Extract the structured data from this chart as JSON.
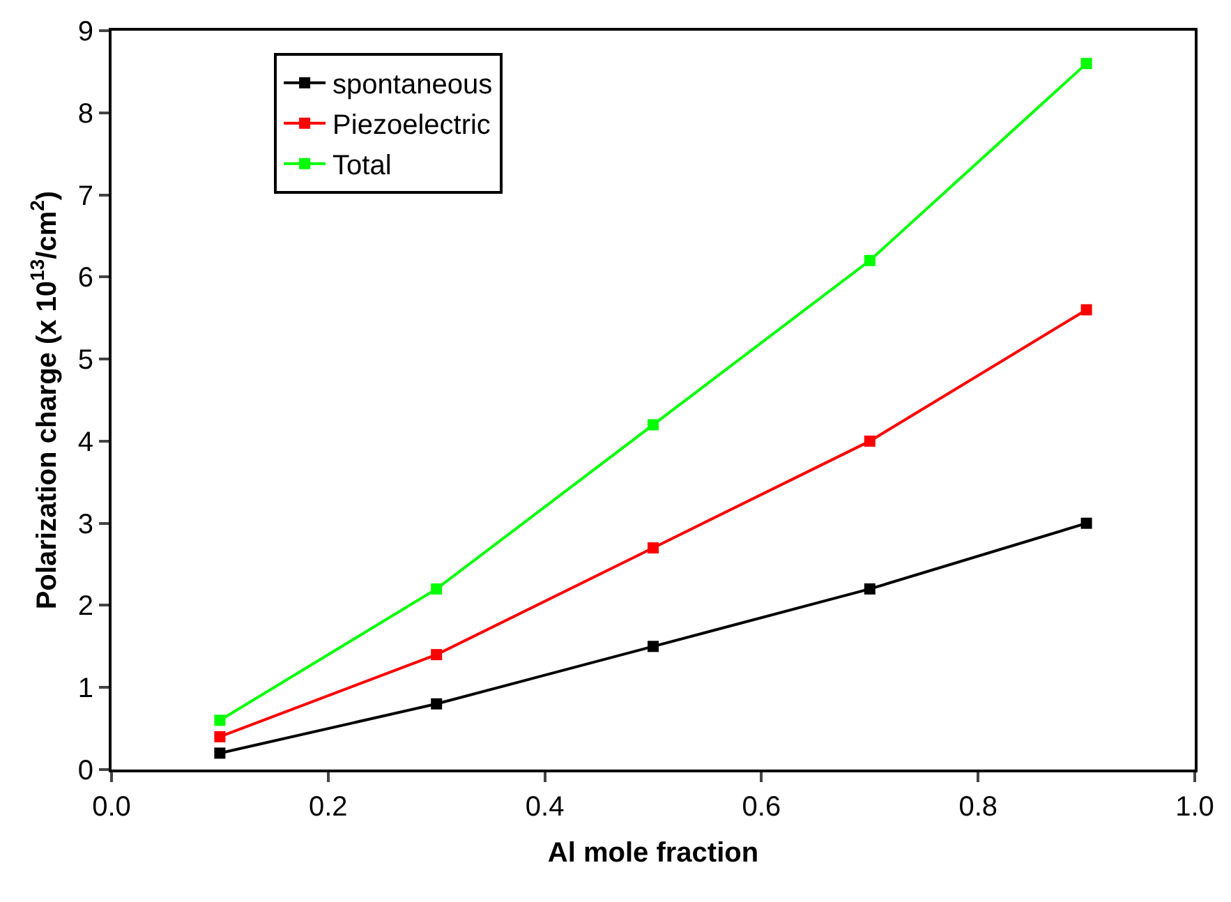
{
  "chart_data": {
    "type": "line",
    "xlabel": "Al mole fraction",
    "ylabel": "Polarization charge (x 10$^{13}$/cm$^{2}$)",
    "x": [
      0.1,
      0.3,
      0.5,
      0.7,
      0.9
    ],
    "series": [
      {
        "name": "spontaneous",
        "color": "#000000",
        "values": [
          0.2,
          0.8,
          1.5,
          2.2,
          3.0
        ]
      },
      {
        "name": "Piezoelectric",
        "color": "#ff0000",
        "values": [
          0.4,
          1.4,
          2.7,
          4.0,
          5.6
        ]
      },
      {
        "name": "Total",
        "color": "#00ff00",
        "values": [
          0.6,
          2.2,
          4.2,
          6.2,
          8.6
        ]
      }
    ],
    "xlim": [
      0.0,
      1.0
    ],
    "xticks": [
      {
        "value": 0.0,
        "label": "0.0"
      },
      {
        "value": 0.2,
        "label": "0.2"
      },
      {
        "value": 0.4,
        "label": "0.4"
      },
      {
        "value": 0.6,
        "label": "0.6"
      },
      {
        "value": 0.8,
        "label": "0.8"
      },
      {
        "value": 1.0,
        "label": "1.0"
      }
    ],
    "ylim": [
      0,
      9
    ],
    "yticks": [
      0,
      1,
      2,
      3,
      4,
      5,
      6,
      7,
      8,
      9
    ],
    "legend": "top left",
    "marker": "square",
    "line_style": "solid"
  }
}
